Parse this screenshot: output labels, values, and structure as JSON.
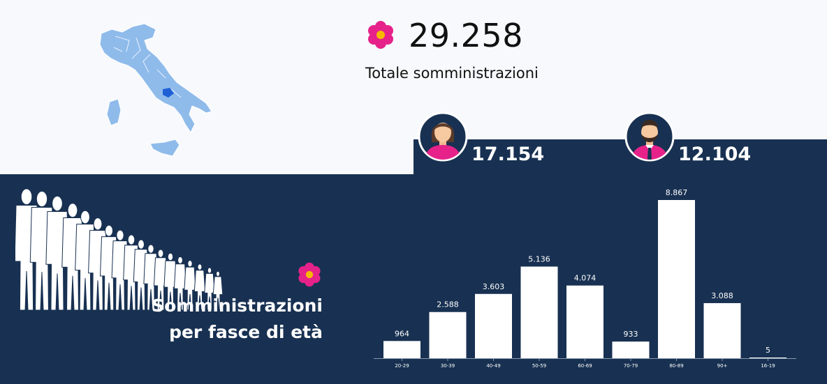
{
  "totals": {
    "value": "29.258",
    "label": "Totale somministrazioni"
  },
  "gender": {
    "female": {
      "icon": "woman-avatar-icon",
      "value": "17.154"
    },
    "male": {
      "icon": "man-avatar-icon",
      "value": "12.104"
    }
  },
  "age_section": {
    "title_line1": "Somministrazioni",
    "title_line2": "per fasce di età"
  },
  "colors": {
    "navy": "#183152",
    "light_bg": "#f7f9fc",
    "flower_pink": "#e6228a",
    "flower_center": "#f7b800",
    "map_region": "#8fbbeb",
    "map_highlight": "#1f5fd6",
    "bar": "#ffffff"
  },
  "chart_data": {
    "type": "bar",
    "categories": [
      "20-29",
      "30-39",
      "40-49",
      "50-59",
      "60-69",
      "70-79",
      "80-89",
      "90+",
      "16-19"
    ],
    "values": [
      964,
      2588,
      3603,
      5136,
      4074,
      933,
      8867,
      3088,
      5
    ],
    "value_labels": [
      "964",
      "2.588",
      "3.603",
      "5.136",
      "4.074",
      "933",
      "8.867",
      "3.088",
      "5"
    ],
    "ylim": [
      0,
      8867
    ],
    "grid": false,
    "title": "",
    "xlabel": "",
    "ylabel": ""
  }
}
